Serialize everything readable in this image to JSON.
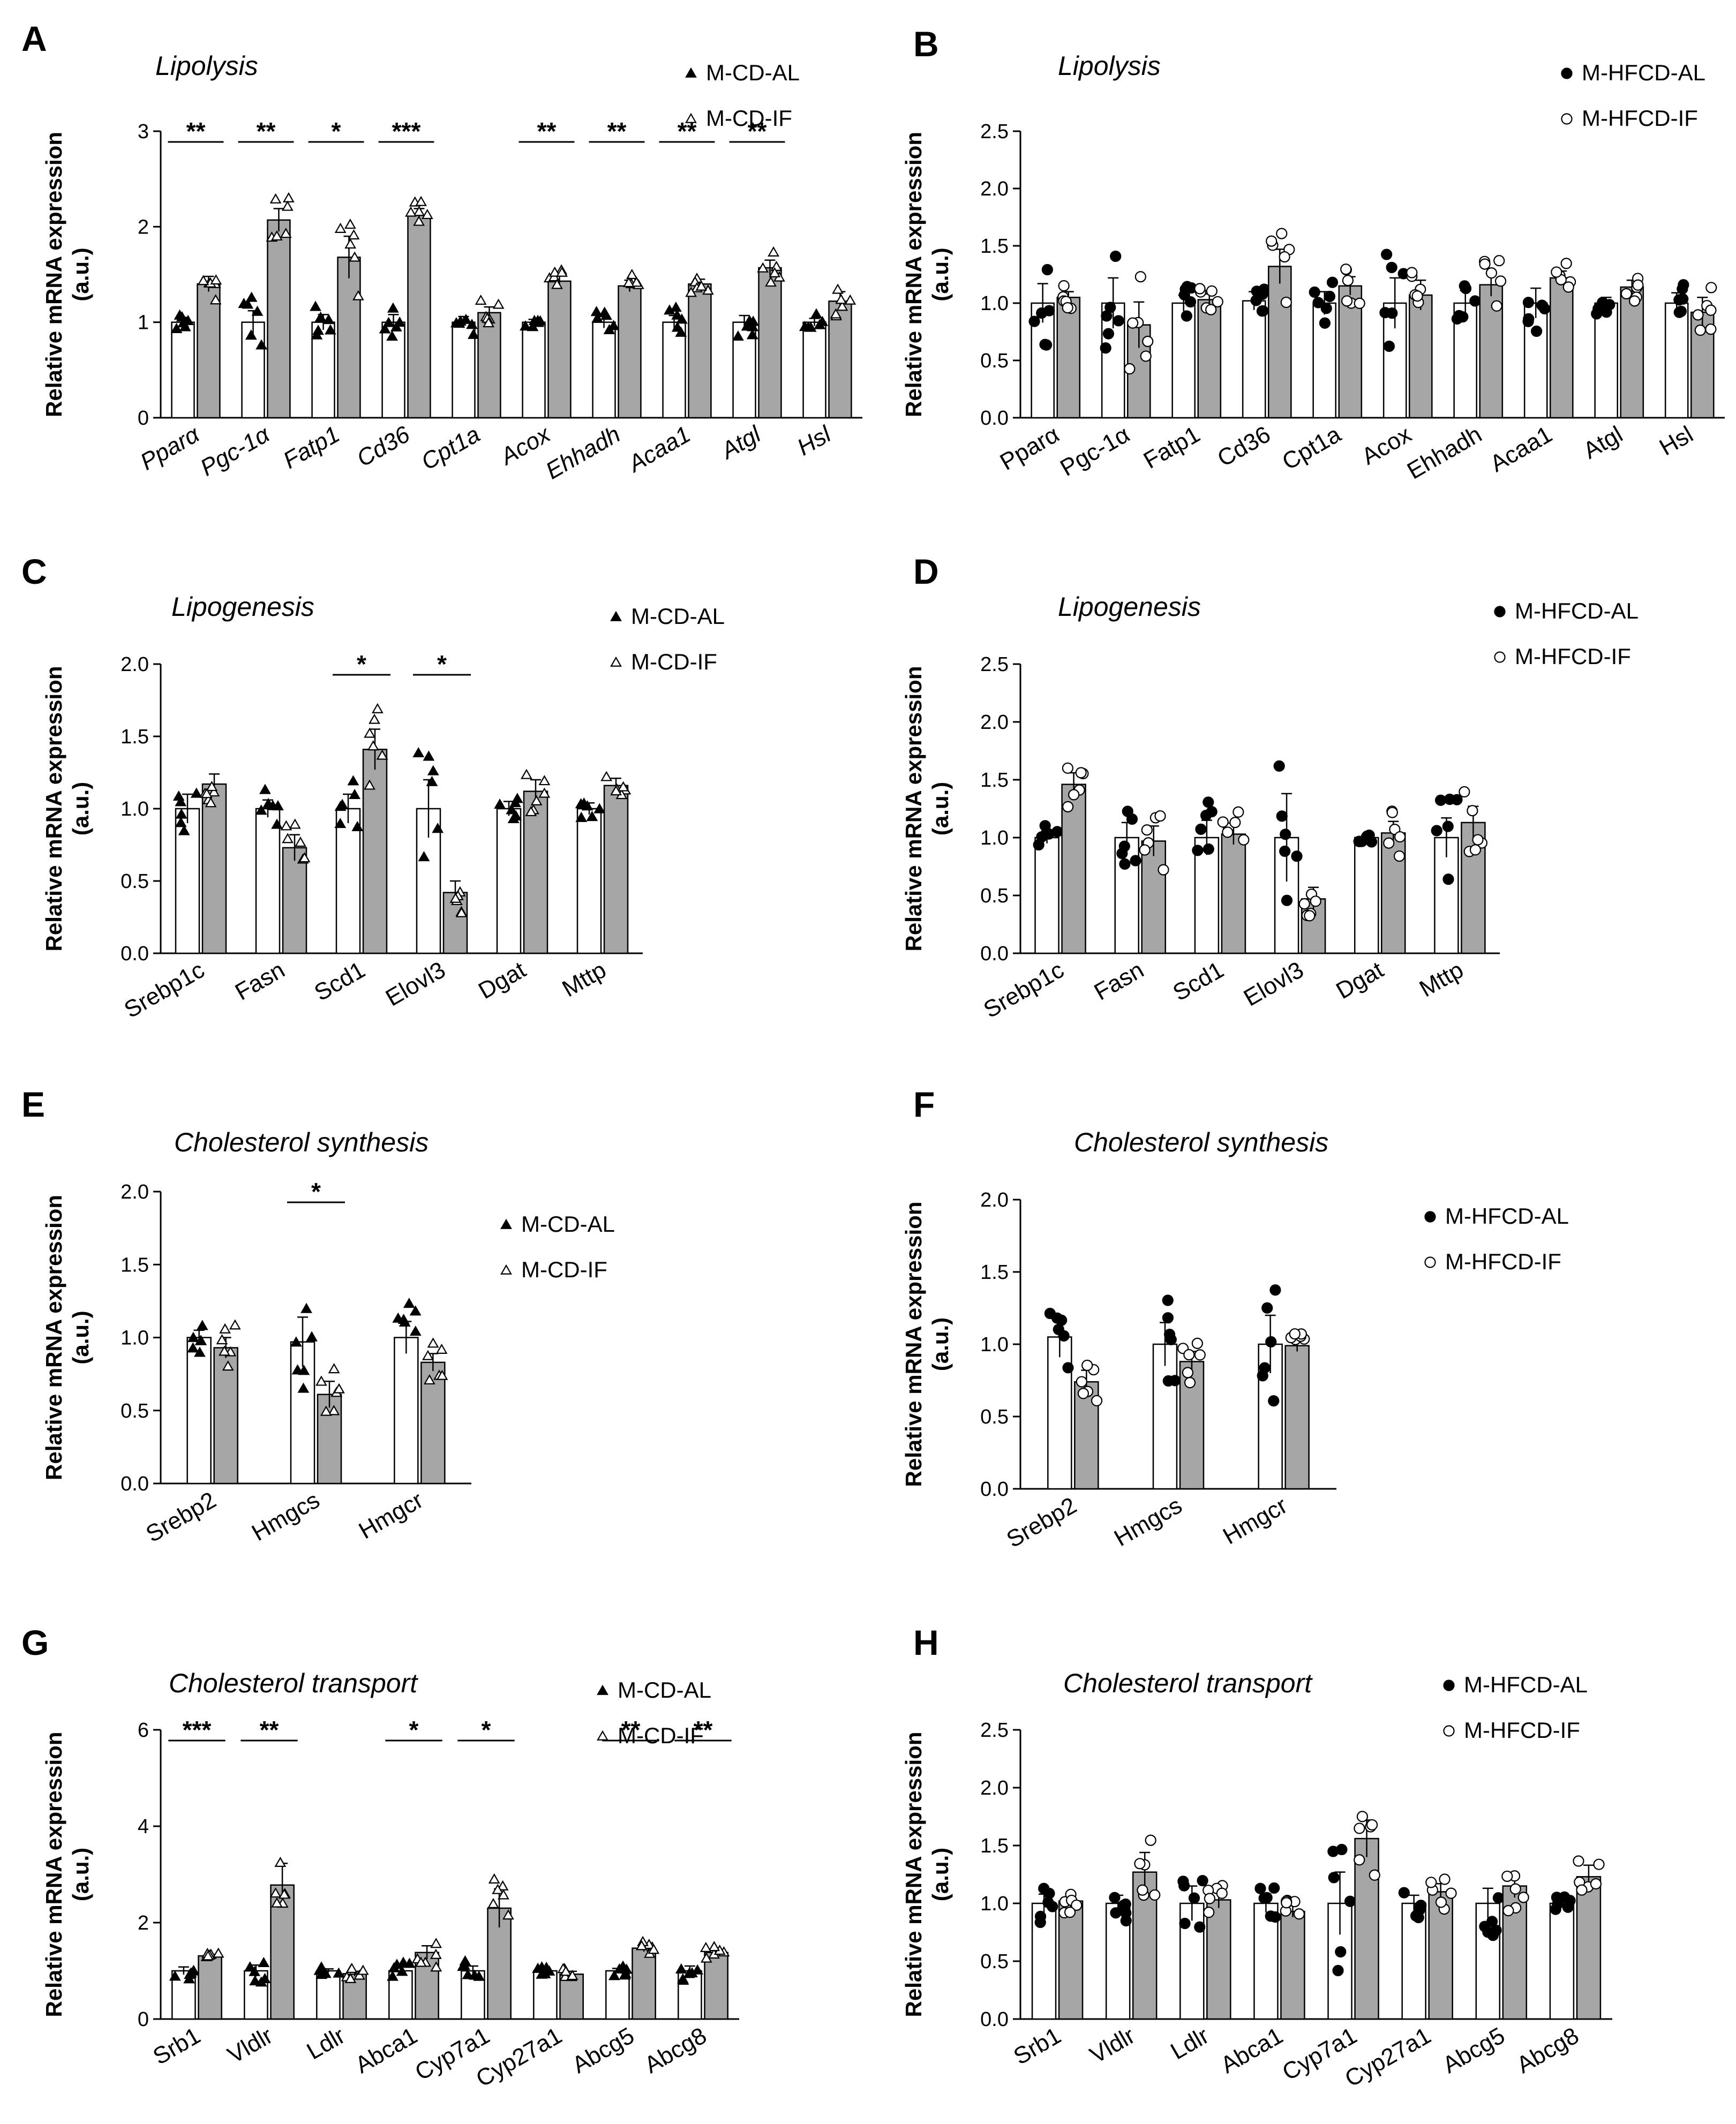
{
  "chart_data": [
    {
      "panel": "A",
      "type": "bar",
      "title": "Lipolysis",
      "ylabel_line1": "Relative mRNA expression",
      "ylabel_line2": "(a.u.)",
      "ylim": [
        0,
        3
      ],
      "yticks": [
        "0",
        "1",
        "2",
        "3"
      ],
      "italic_categories": true,
      "marker": "triangle",
      "categories": [
        "Pparα",
        "Pgc-1α",
        "Fatp1",
        "Cd36",
        "Cpt1a",
        "Acox",
        "Ehhadh",
        "Acaa1",
        "Atgl",
        "Hsl"
      ],
      "series": [
        {
          "name": "M-CD-AL",
          "values": [
            1.0,
            1.0,
            1.0,
            1.0,
            1.0,
            1.0,
            1.0,
            1.0,
            1.0,
            1.0
          ],
          "errors": [
            0.05,
            0.12,
            0.08,
            0.08,
            0.06,
            0.03,
            0.06,
            0.07,
            0.07,
            0.04
          ]
        },
        {
          "name": "M-CD-IF",
          "values": [
            1.4,
            2.07,
            1.68,
            2.12,
            1.1,
            1.43,
            1.38,
            1.4,
            1.57,
            1.22
          ],
          "errors": [
            0.08,
            0.12,
            0.22,
            0.07,
            0.06,
            0.06,
            0.06,
            0.05,
            0.08,
            0.1
          ]
        }
      ],
      "significance": [
        {
          "category_index": 0,
          "label": "**"
        },
        {
          "category_index": 1,
          "label": "**"
        },
        {
          "category_index": 2,
          "label": "*"
        },
        {
          "category_index": 3,
          "label": "***"
        },
        {
          "category_index": 5,
          "label": "**"
        },
        {
          "category_index": 6,
          "label": "**"
        },
        {
          "category_index": 7,
          "label": "**"
        },
        {
          "category_index": 8,
          "label": "**"
        }
      ]
    },
    {
      "panel": "B",
      "type": "bar",
      "title": "Lipolysis",
      "ylabel_line1": "Relative mRNA expression",
      "ylabel_line2": "(a.u.)",
      "ylim": [
        0,
        2.5
      ],
      "yticks": [
        "0.0",
        "0.5",
        "1.0",
        "1.5",
        "2.0",
        "2.5"
      ],
      "italic_categories": false,
      "marker": "circle",
      "categories": [
        "Pparα",
        "Pgc-1α",
        "Fatp1",
        "Cd36",
        "Cpt1a",
        "Acox",
        "Ehhadh",
        "Acaa1",
        "Atgl",
        "Hsl"
      ],
      "series": [
        {
          "name": "M-HFCD-AL",
          "values": [
            1.0,
            1.0,
            1.0,
            1.02,
            1.0,
            1.0,
            1.0,
            1.0,
            1.0,
            1.0
          ],
          "errors": [
            0.17,
            0.22,
            0.07,
            0.08,
            0.1,
            0.22,
            0.11,
            0.13,
            0.05,
            0.09
          ]
        },
        {
          "name": "M-HFCD-IF",
          "values": [
            1.05,
            0.81,
            1.03,
            1.32,
            1.15,
            1.07,
            1.16,
            1.22,
            1.14,
            0.92
          ],
          "errors": [
            0.05,
            0.2,
            0.05,
            0.15,
            0.08,
            0.13,
            0.1,
            0.06,
            0.06,
            0.13
          ]
        }
      ],
      "significance": []
    },
    {
      "panel": "C",
      "type": "bar",
      "title": "Lipogenesis",
      "ylabel_line1": "Relative mRNA expression",
      "ylabel_line2": "(a.u.)",
      "ylim": [
        0,
        2.0
      ],
      "yticks": [
        "0.0",
        "0.5",
        "1.0",
        "1.5",
        "2.0"
      ],
      "italic_categories": false,
      "marker": "triangle",
      "categories": [
        "Srebp1c",
        "Fasn",
        "Scd1",
        "Elovl3",
        "Dgat",
        "Mttp"
      ],
      "series": [
        {
          "name": "M-CD-AL",
          "values": [
            1.0,
            1.0,
            1.0,
            1.0,
            1.0,
            1.0
          ],
          "errors": [
            0.1,
            0.06,
            0.1,
            0.2,
            0.05,
            0.04
          ]
        },
        {
          "name": "M-CD-IF",
          "values": [
            1.17,
            0.73,
            1.41,
            0.42,
            1.12,
            1.16
          ],
          "errors": [
            0.07,
            0.09,
            0.14,
            0.08,
            0.08,
            0.05
          ]
        }
      ],
      "significance": [
        {
          "category_index": 2,
          "label": "*"
        },
        {
          "category_index": 3,
          "label": "*"
        }
      ]
    },
    {
      "panel": "D",
      "type": "bar",
      "title": "Lipogenesis",
      "ylabel_line1": "Relative mRNA expression",
      "ylabel_line2": "(a.u.)",
      "ylim": [
        0,
        2.5
      ],
      "yticks": [
        "0.0",
        "0.5",
        "1.0",
        "1.5",
        "2.0",
        "2.5"
      ],
      "italic_categories": false,
      "marker": "circle",
      "categories": [
        "Srebp1c",
        "Fasn",
        "Scd1",
        "Elovl3",
        "Dgat",
        "Mttp"
      ],
      "series": [
        {
          "name": "M-HFCD-AL",
          "values": [
            1.0,
            1.0,
            1.0,
            1.0,
            1.0,
            1.0
          ],
          "errors": [
            0.05,
            0.13,
            0.15,
            0.38,
            0.02,
            0.17
          ]
        },
        {
          "name": "M-HFCD-IF",
          "values": [
            1.46,
            0.97,
            1.03,
            0.47,
            1.04,
            1.13
          ],
          "errors": [
            0.1,
            0.13,
            0.09,
            0.1,
            0.1,
            0.14
          ]
        }
      ],
      "significance": []
    },
    {
      "panel": "E",
      "type": "bar",
      "title": "Cholesterol synthesis",
      "ylabel_line1": "Relative mRNA expression",
      "ylabel_line2": "(a.u.)",
      "ylim": [
        0,
        2.0
      ],
      "yticks": [
        "0.0",
        "0.5",
        "1.0",
        "1.5",
        "2.0"
      ],
      "italic_categories": false,
      "marker": "triangle",
      "categories": [
        "Srebp2",
        "Hmgcs",
        "Hmgcr"
      ],
      "series": [
        {
          "name": "M-CD-AL",
          "values": [
            1.0,
            0.97,
            1.0
          ],
          "errors": [
            0.05,
            0.17,
            0.11
          ]
        },
        {
          "name": "M-CD-IF",
          "values": [
            0.93,
            0.61,
            0.83
          ],
          "errors": [
            0.07,
            0.09,
            0.06
          ]
        }
      ],
      "significance": [
        {
          "category_index": 1,
          "label": "*"
        }
      ]
    },
    {
      "panel": "F",
      "type": "bar",
      "title": "Cholesterol synthesis",
      "ylabel_line1": "Relative mRNA expression",
      "ylabel_line2": "(a.u.)",
      "ylim": [
        0,
        2.0
      ],
      "yticks": [
        "0.0",
        "0.5",
        "1.0",
        "1.5",
        "2.0"
      ],
      "italic_categories": false,
      "marker": "circle",
      "categories": [
        "Srebp2",
        "Hmgcs",
        "Hmgcr"
      ],
      "series": [
        {
          "name": "M-HFCD-AL",
          "values": [
            1.05,
            1.0,
            1.0
          ],
          "errors": [
            0.14,
            0.15,
            0.2
          ]
        },
        {
          "name": "M-HFCD-IF",
          "values": [
            0.74,
            0.88,
            0.99
          ],
          "errors": [
            0.08,
            0.07,
            0.04
          ]
        }
      ],
      "significance": []
    },
    {
      "panel": "G",
      "type": "bar",
      "title": "Cholesterol transport",
      "ylabel_line1": "Relative mRNA expression",
      "ylabel_line2": "(a.u.)",
      "ylim": [
        0,
        6
      ],
      "yticks": [
        "0",
        "2",
        "4",
        "6"
      ],
      "italic_categories": false,
      "marker": "triangle",
      "categories": [
        "Srb1",
        "Vldlr",
        "Ldlr",
        "Abca1",
        "Cyp7a1",
        "Cyp27a1",
        "Abcg5",
        "Abcg8"
      ],
      "series": [
        {
          "name": "M-CD-AL",
          "values": [
            1.0,
            1.0,
            1.0,
            1.0,
            1.0,
            1.0,
            1.0,
            1.0
          ],
          "errors": [
            0.08,
            0.12,
            0.04,
            0.08,
            0.1,
            0.04,
            0.05,
            0.1
          ]
        },
        {
          "name": "M-CD-IF",
          "values": [
            1.31,
            2.78,
            0.94,
            1.38,
            2.3,
            0.93,
            1.47,
            1.38
          ],
          "errors": [
            0.03,
            0.45,
            0.05,
            0.14,
            0.4,
            0.06,
            0.07,
            0.06
          ]
        }
      ],
      "significance": [
        {
          "category_index": 0,
          "label": "***"
        },
        {
          "category_index": 1,
          "label": "**"
        },
        {
          "category_index": 3,
          "label": "*"
        },
        {
          "category_index": 4,
          "label": "*"
        },
        {
          "category_index": 6,
          "label": "**"
        },
        {
          "category_index": 7,
          "label": "**"
        }
      ]
    },
    {
      "panel": "H",
      "type": "bar",
      "title": "Cholesterol transport",
      "ylabel_line1": "Relative mRNA expression",
      "ylabel_line2": "(a.u.)",
      "ylim": [
        0,
        2.5
      ],
      "yticks": [
        "0.0",
        "0.5",
        "1.0",
        "1.5",
        "2.0",
        "2.5"
      ],
      "italic_categories": false,
      "marker": "circle",
      "categories": [
        "Srb1",
        "Vldlr",
        "Ldlr",
        "Abca1",
        "Cyp7a1",
        "Cyp27a1",
        "Abcg5",
        "Abcg8"
      ],
      "series": [
        {
          "name": "M-HFCD-AL",
          "values": [
            1.0,
            1.0,
            1.0,
            1.0,
            1.0,
            1.0,
            1.0,
            1.0
          ],
          "errors": [
            0.08,
            0.07,
            0.15,
            0.08,
            0.27,
            0.07,
            0.13,
            0.03
          ]
        },
        {
          "name": "M-HFCD-IF",
          "values": [
            1.02,
            1.27,
            1.03,
            0.93,
            1.56,
            1.1,
            1.15,
            1.23
          ],
          "errors": [
            0.05,
            0.17,
            0.07,
            0.05,
            0.16,
            0.07,
            0.1,
            0.1
          ]
        }
      ],
      "significance": []
    }
  ]
}
